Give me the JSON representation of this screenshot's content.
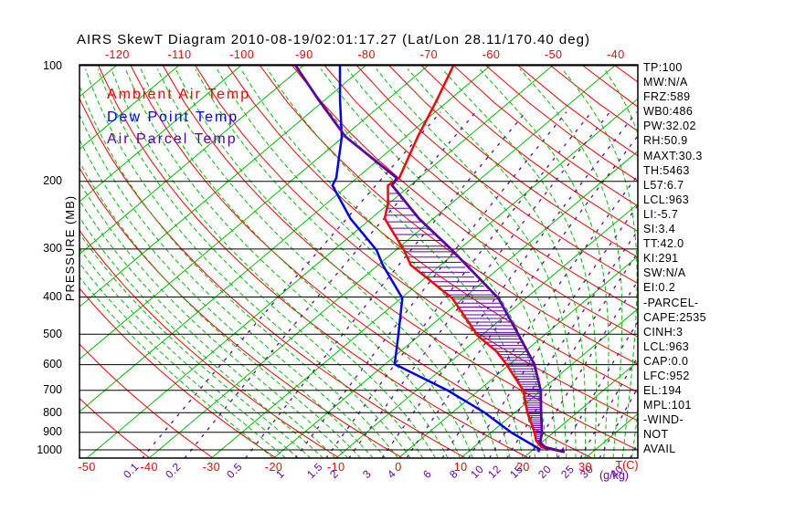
{
  "title": "AIRS SkewT Diagram 2010-08-19/02:01:17.27 (Lat/Lon 28.11/170.40 deg)",
  "colors": {
    "isotherm_green": "#00be00",
    "dry_adiabat_red": "#ff0000",
    "moist_adiabat_green": "#00be00",
    "mixing_ratio_purple": "#6a00aa",
    "ambient_red": "#ff0000",
    "dewpoint_blue": "#0000ee",
    "parcel_purple": "#5a00a5",
    "grid_black": "#000000"
  },
  "legend": [
    {
      "label": "Ambient Air Temp",
      "color": "#ff0000"
    },
    {
      "label": "Dew Point Temp",
      "color": "#0000ee"
    },
    {
      "label": "Air Parcel Temp",
      "color": "#5a00a5"
    }
  ],
  "axes": {
    "pressure_label": "PRESSURE (MB)",
    "pressure_ticks_mb": [
      100,
      200,
      300,
      400,
      500,
      600,
      700,
      800,
      900,
      1000
    ],
    "top_temp_ticks_c": [
      -120,
      -110,
      -100,
      -90,
      -80,
      -70,
      -60,
      -50,
      -40
    ],
    "bottom_temp_ticks_c": [
      -50,
      -40,
      -30,
      -20,
      -10,
      0,
      10,
      20,
      30
    ],
    "temp_axis_label": "T(C)",
    "mixing_axis_label": "(g/kg)"
  },
  "stats_panel": [
    "TP:100",
    "MW:N/A",
    "FRZ:589",
    "WB0:486",
    "PW:32.02",
    "RH:50.9",
    "MAXT:30.3",
    "TH:5463",
    "L57:6.7",
    "LCL:963",
    "LI:-5.7",
    "SI:3.4",
    "TT:42.0",
    "KI:291",
    "SW:N/A",
    "EI:0.2",
    "-PARCEL-",
    "CAPE:2535",
    "CINH:3",
    "LCL:963",
    "CAP:0.0",
    "LFC:952",
    "EL:194",
    "MPL:101",
    "-WIND-",
    "NOT",
    "AVAIL"
  ],
  "chart_data": {
    "type": "skewt-log-p",
    "pressure_range_mb": [
      100,
      1050
    ],
    "temp_at_bottom_range_c": [
      -50,
      38
    ],
    "profiles": {
      "ambient_temp_c": [
        [
          100,
          -65.9
        ],
        [
          123,
          -62.0
        ],
        [
          153,
          -58.1
        ],
        [
          196,
          -53.2
        ],
        [
          205,
          -53.6
        ],
        [
          228,
          -50.2
        ],
        [
          250,
          -47.8
        ],
        [
          302,
          -38.7
        ],
        [
          330,
          -34.8
        ],
        [
          403,
          -21.8
        ],
        [
          505,
          -10.5
        ],
        [
          554,
          -4.6
        ],
        [
          598,
          -0.6
        ],
        [
          701,
          7.2
        ],
        [
          799,
          12.0
        ],
        [
          902,
          17.0
        ],
        [
          947,
          18.8
        ],
        [
          984,
          20.9
        ],
        [
          1013,
          25.5
        ]
      ],
      "dew_point_c": [
        [
          100,
          -84.1
        ],
        [
          123,
          -77.5
        ],
        [
          153,
          -70.3
        ],
        [
          196,
          -63.3
        ],
        [
          205,
          -62.5
        ],
        [
          250,
          -53.3
        ],
        [
          302,
          -43.1
        ],
        [
          330,
          -39.3
        ],
        [
          403,
          -29.8
        ],
        [
          505,
          -23.3
        ],
        [
          598,
          -18.5
        ],
        [
          701,
          -4.9
        ],
        [
          799,
          5.1
        ],
        [
          902,
          13.3
        ],
        [
          995,
          20.9
        ],
        [
          1013,
          21.3
        ]
      ],
      "parcel_temp_c": [
        [
          100,
          -91.2
        ],
        [
          123,
          -80.9
        ],
        [
          153,
          -69.7
        ],
        [
          196,
          -53.6
        ],
        [
          205,
          -52.9
        ],
        [
          250,
          -42.3
        ],
        [
          302,
          -31.0
        ],
        [
          403,
          -14.4
        ],
        [
          505,
          -3.9
        ],
        [
          598,
          3.9
        ],
        [
          701,
          10.0
        ],
        [
          799,
          14.2
        ],
        [
          902,
          18.2
        ],
        [
          957,
          19.8
        ],
        [
          984,
          21.5
        ],
        [
          1013,
          25.5
        ]
      ]
    },
    "cape_hatch": {
      "pressure_top_mb": 215,
      "pressure_bottom_mb": 945,
      "step_mb": 10
    },
    "background": {
      "isotherms_c": {
        "min": -130,
        "max": 40,
        "step": 10
      },
      "dry_adiabats_theta_k": [
        230,
        240,
        250,
        260,
        270,
        280,
        290,
        300,
        310,
        320,
        330,
        340,
        350,
        360,
        370,
        380,
        390,
        400,
        410,
        420,
        430,
        440,
        450,
        460
      ],
      "moist_adiabats_thetaw_c": [
        -20,
        -18,
        -16,
        -14,
        -12,
        -10,
        -8,
        -6,
        -4,
        -2,
        0,
        2,
        4,
        6,
        8,
        10,
        12,
        14,
        16,
        18,
        20,
        22,
        24,
        25.5,
        27,
        28.5,
        30,
        31.5,
        33,
        34.5,
        36,
        37.5,
        39,
        40.5,
        42,
        43.5
      ],
      "mixing_ratio_g_per_kg": [
        0.1,
        0.2,
        0.5,
        1,
        1.5,
        2,
        3,
        4,
        6,
        8,
        10,
        12,
        15,
        20,
        25,
        30,
        40
      ]
    }
  }
}
